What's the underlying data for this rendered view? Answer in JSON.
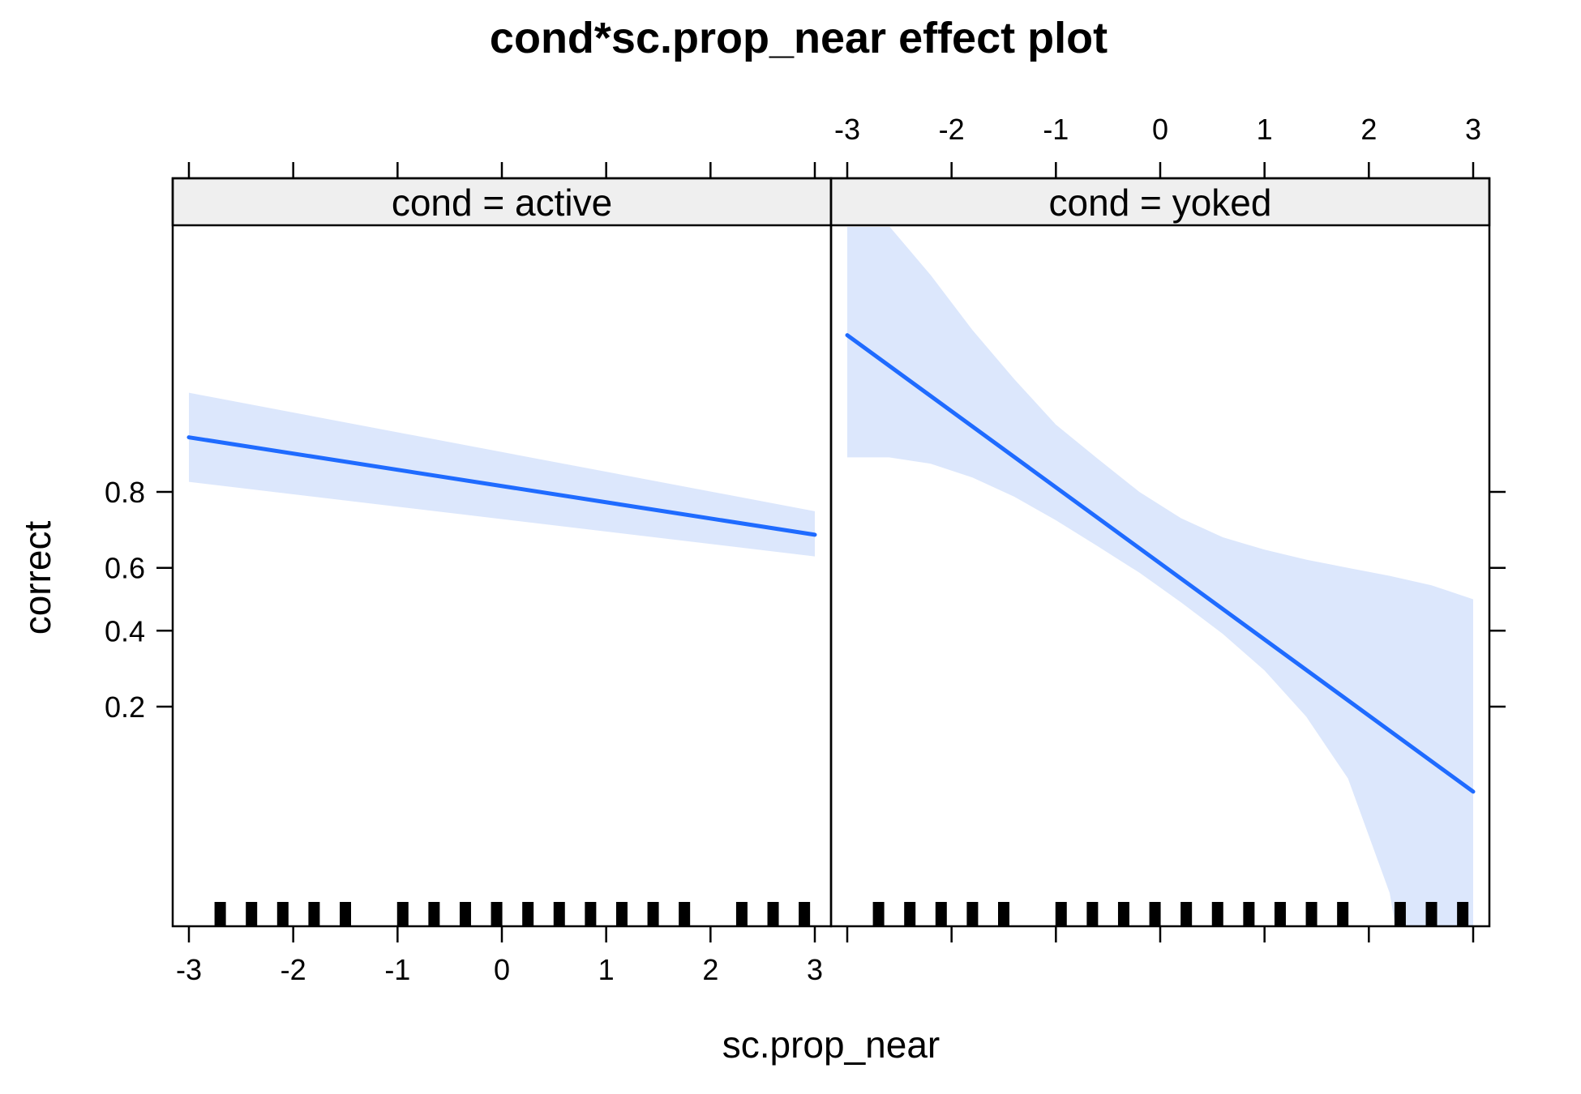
{
  "chart_data": {
    "type": "line",
    "title": "cond*sc.prop_near effect plot",
    "xlabel": "sc.prop_near",
    "ylabel": "correct",
    "x_ticks": [
      "-3",
      "-2",
      "-1",
      "0",
      "1",
      "2",
      "3"
    ],
    "y_ticks": [
      "0.2",
      "0.4",
      "0.6",
      "0.8"
    ],
    "xlim": [
      -3,
      3
    ],
    "grid": false,
    "line_color": "#1F6BFF",
    "band_color": "#DCE7FC",
    "panels": [
      {
        "label": "cond = active",
        "line": {
          "x": [
            -3,
            3
          ],
          "y": [
            0.89,
            0.697
          ]
        },
        "band": {
          "x": [
            -3,
            3
          ],
          "lower": [
            0.82,
            0.635
          ],
          "upper": [
            0.935,
            0.757
          ]
        },
        "rug": [
          -2.7,
          -2.4,
          -2.1,
          -1.8,
          -1.5,
          -0.95,
          -0.65,
          -0.35,
          -0.05,
          0.25,
          0.55,
          0.85,
          1.15,
          1.45,
          1.75,
          2.3,
          2.6,
          2.9
        ]
      },
      {
        "label": "cond = yoked",
        "line": {
          "x": [
            -3,
            3
          ],
          "y": [
            0.968,
            0.077
          ]
        },
        "band": {
          "x": [
            -3,
            -2.6,
            -2.2,
            -1.8,
            -1.4,
            -1.0,
            -0.6,
            -0.2,
            0.2,
            0.6,
            1.0,
            1.4,
            1.8,
            2.2,
            2.6,
            3.0
          ],
          "lower": [
            0.862,
            0.862,
            0.852,
            0.828,
            0.79,
            0.735,
            0.665,
            0.585,
            0.49,
            0.39,
            0.285,
            0.18,
            0.09,
            0.022,
            -0.01,
            -0.01
          ],
          "upper": [
            0.995,
            0.992,
            0.985,
            0.97,
            0.945,
            0.905,
            0.86,
            0.8,
            0.74,
            0.69,
            0.655,
            0.625,
            0.6,
            0.575,
            0.545,
            0.5
          ]
        },
        "rug": [
          -2.7,
          -2.4,
          -2.1,
          -1.8,
          -1.5,
          -0.95,
          -0.65,
          -0.35,
          -0.05,
          0.25,
          0.55,
          0.85,
          1.15,
          1.45,
          1.75,
          2.3,
          2.6,
          2.9
        ]
      }
    ]
  }
}
